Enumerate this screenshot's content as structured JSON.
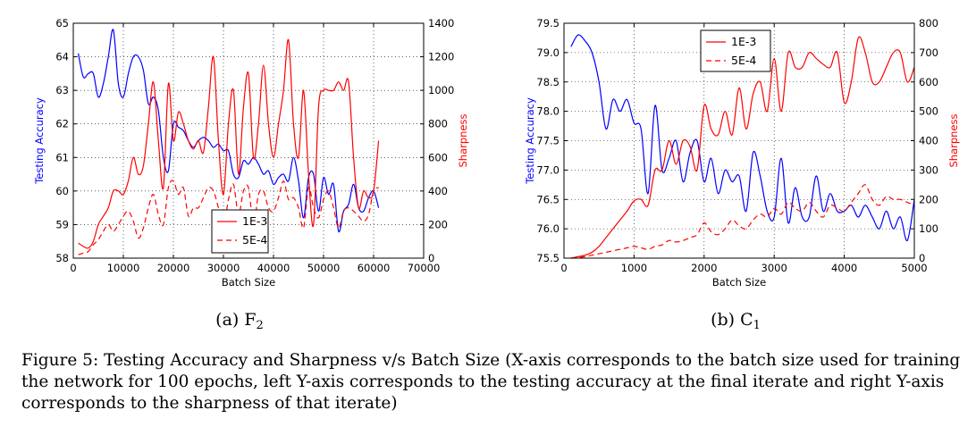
{
  "figure_caption": "Figure 5: Testing Accuracy and Sharpness v/s Batch Size (X-axis corresponds to the batch size used for training the network for 100 epochs, left Y-axis corresponds to the testing accuracy at the final iterate and right Y-axis corresponds to the sharpness of that iterate)",
  "colors": {
    "accuracy": "#0000ff",
    "sharpness": "#ff0000",
    "legend_text": "#000000"
  },
  "chart_data": [
    {
      "type": "line",
      "subcaption": "(a) F",
      "subcaption_sub": "2",
      "xlabel": "Batch Size",
      "ylabel_left": "Testing Accuracy",
      "ylabel_right": "Sharpness",
      "xlim": [
        0,
        70000
      ],
      "ylim_left": [
        58,
        65
      ],
      "ylim_right": [
        0,
        1400
      ],
      "xticks": [
        0,
        10000,
        20000,
        30000,
        40000,
        50000,
        60000,
        70000
      ],
      "yticks_left": [
        "58",
        "59",
        "60",
        "61",
        "62",
        "63",
        "64",
        "65"
      ],
      "yticks_right": [
        "0",
        "200",
        "400",
        "600",
        "800",
        "1000",
        "1200",
        "1400"
      ],
      "grid": true,
      "legend_position": "lower-right",
      "series": [
        {
          "axis": "left",
          "style": "solid",
          "x": [
            1000,
            2000,
            3000,
            4000,
            5000,
            6000,
            7000,
            8000,
            9000,
            10000,
            11000,
            12000,
            13000,
            14000,
            15000,
            16000,
            17000,
            18000,
            19000,
            20000,
            21000,
            22000,
            23000,
            24000,
            25000,
            26000,
            27000,
            28000,
            29000,
            30000,
            31000,
            32000,
            33000,
            34000,
            35000,
            36000,
            37000,
            38000,
            39000,
            40000,
            41000,
            42000,
            43000,
            44000,
            45000,
            46000,
            47000,
            48000,
            49000,
            50000,
            51000,
            52000,
            53000,
            54000,
            55000,
            56000,
            57000,
            58000,
            59000,
            60000,
            61000
          ],
          "y": [
            64.1,
            63.4,
            63.5,
            63.5,
            62.8,
            63.2,
            64.0,
            64.8,
            63.2,
            62.8,
            63.5,
            64.0,
            64.0,
            63.6,
            62.6,
            62.8,
            62.4,
            61.0,
            60.6,
            62.0,
            61.9,
            61.8,
            61.5,
            61.3,
            61.5,
            61.6,
            61.5,
            61.3,
            61.4,
            61.2,
            61.2,
            60.5,
            60.4,
            60.9,
            60.8,
            61.0,
            60.8,
            60.5,
            60.6,
            60.2,
            60.4,
            60.5,
            60.3,
            61.0,
            60.3,
            59.2,
            60.4,
            60.5,
            59.4,
            60.4,
            59.9,
            60.2,
            58.8,
            59.4,
            59.6,
            60.2,
            59.5,
            59.4,
            59.8,
            60.0,
            59.5
          ]
        },
        {
          "name": "1E-3",
          "axis": "right",
          "style": "solid",
          "x": [
            1000,
            2000,
            3000,
            4000,
            5000,
            6000,
            7000,
            8000,
            9000,
            10000,
            11000,
            12000,
            13000,
            14000,
            15000,
            16000,
            17000,
            18000,
            19000,
            20000,
            21000,
            22000,
            23000,
            24000,
            25000,
            26000,
            27000,
            28000,
            29000,
            30000,
            31000,
            32000,
            33000,
            34000,
            35000,
            36000,
            37000,
            38000,
            39000,
            40000,
            41000,
            42000,
            43000,
            44000,
            45000,
            46000,
            47000,
            48000,
            49000,
            50000,
            51000,
            52000,
            53000,
            54000,
            55000,
            56000,
            57000,
            58000,
            59000,
            60000,
            61000
          ],
          "y": [
            90,
            70,
            60,
            100,
            200,
            250,
            300,
            400,
            400,
            380,
            460,
            600,
            500,
            550,
            800,
            1050,
            700,
            420,
            1040,
            700,
            870,
            800,
            700,
            650,
            700,
            630,
            900,
            1200,
            700,
            380,
            800,
            1000,
            500,
            900,
            1100,
            600,
            800,
            1150,
            800,
            600,
            800,
            1000,
            1300,
            800,
            600,
            1000,
            500,
            200,
            900,
            1000,
            1000,
            1000,
            1050,
            1000,
            1050,
            600,
            300,
            400,
            360,
            400,
            700
          ]
        },
        {
          "name": "5E-4",
          "axis": "right",
          "style": "dashed",
          "x": [
            1000,
            2000,
            3000,
            4000,
            5000,
            6000,
            7000,
            8000,
            9000,
            10000,
            11000,
            12000,
            13000,
            14000,
            15000,
            16000,
            17000,
            18000,
            19000,
            20000,
            21000,
            22000,
            23000,
            24000,
            25000,
            26000,
            27000,
            28000,
            29000,
            30000,
            31000,
            32000,
            33000,
            34000,
            35000,
            36000,
            37000,
            38000,
            39000,
            40000,
            41000,
            42000,
            43000,
            44000,
            45000,
            46000,
            47000,
            48000,
            49000,
            50000,
            51000,
            52000,
            53000,
            54000,
            55000,
            56000,
            57000,
            58000,
            59000,
            60000,
            61000
          ],
          "y": [
            20,
            30,
            40,
            80,
            110,
            160,
            200,
            160,
            200,
            250,
            280,
            220,
            120,
            180,
            300,
            380,
            260,
            200,
            420,
            460,
            380,
            420,
            250,
            300,
            300,
            360,
            420,
            400,
            300,
            180,
            350,
            440,
            260,
            400,
            420,
            200,
            380,
            400,
            300,
            280,
            360,
            460,
            350,
            360,
            300,
            180,
            420,
            300,
            240,
            350,
            400,
            300,
            180,
            280,
            300,
            280,
            250,
            220,
            260,
            400,
            420
          ]
        }
      ]
    },
    {
      "type": "line",
      "subcaption": "(b) C",
      "subcaption_sub": "1",
      "xlabel": "Batch Size",
      "ylabel_left": "Testing Accuracy",
      "ylabel_right": "Sharpness",
      "xlim": [
        0,
        5000
      ],
      "ylim_left": [
        75.5,
        79.5
      ],
      "ylim_right": [
        0,
        800
      ],
      "xticks": [
        0,
        1000,
        2000,
        3000,
        4000,
        5000
      ],
      "yticks_left": [
        "75.5",
        "76.0",
        "76.5",
        "77.0",
        "77.5",
        "78.0",
        "78.5",
        "79.0",
        "79.5"
      ],
      "yticks_right": [
        "0",
        "100",
        "200",
        "300",
        "400",
        "500",
        "600",
        "700",
        "800"
      ],
      "grid": true,
      "legend_position": "upper-left",
      "series": [
        {
          "axis": "left",
          "style": "solid",
          "x": [
            100,
            200,
            300,
            400,
            500,
            600,
            700,
            800,
            900,
            1000,
            1100,
            1200,
            1300,
            1400,
            1500,
            1600,
            1700,
            1800,
            1900,
            2000,
            2100,
            2200,
            2300,
            2400,
            2500,
            2600,
            2700,
            2800,
            2900,
            3000,
            3100,
            3200,
            3300,
            3400,
            3500,
            3600,
            3700,
            3800,
            3900,
            4000,
            4100,
            4200,
            4300,
            4400,
            4500,
            4600,
            4700,
            4800,
            4900,
            5000
          ],
          "y": [
            79.1,
            79.3,
            79.2,
            79.0,
            78.5,
            77.7,
            78.2,
            78.0,
            78.2,
            77.8,
            77.7,
            76.6,
            78.1,
            77.0,
            77.2,
            77.5,
            76.8,
            77.3,
            77.5,
            76.8,
            77.2,
            76.6,
            77.0,
            76.8,
            76.9,
            76.3,
            77.3,
            76.9,
            76.3,
            76.2,
            77.2,
            76.1,
            76.7,
            76.2,
            76.2,
            76.9,
            76.3,
            76.6,
            76.3,
            76.3,
            76.4,
            76.2,
            76.4,
            76.2,
            76.0,
            76.3,
            76.0,
            76.2,
            75.8,
            76.5
          ]
        },
        {
          "name": "1E-3",
          "axis": "right",
          "style": "solid",
          "x": [
            100,
            200,
            300,
            400,
            500,
            600,
            700,
            800,
            900,
            1000,
            1100,
            1200,
            1300,
            1400,
            1500,
            1600,
            1700,
            1800,
            1900,
            2000,
            2100,
            2200,
            2300,
            2400,
            2500,
            2600,
            2700,
            2800,
            2900,
            3000,
            3100,
            3200,
            3300,
            3400,
            3500,
            3600,
            3700,
            3800,
            3900,
            4000,
            4100,
            4200,
            4300,
            4400,
            4500,
            4600,
            4700,
            4800,
            4900,
            5000
          ],
          "y": [
            0,
            5,
            10,
            20,
            40,
            70,
            100,
            130,
            160,
            195,
            200,
            180,
            300,
            300,
            400,
            320,
            400,
            380,
            300,
            520,
            440,
            420,
            500,
            420,
            580,
            440,
            560,
            600,
            500,
            680,
            500,
            700,
            650,
            650,
            700,
            680,
            660,
            650,
            700,
            530,
            600,
            750,
            700,
            600,
            600,
            650,
            700,
            700,
            600,
            650
          ]
        },
        {
          "name": "5E-4",
          "axis": "right",
          "style": "dashed",
          "x": [
            100,
            200,
            300,
            400,
            500,
            600,
            700,
            800,
            900,
            1000,
            1100,
            1200,
            1300,
            1400,
            1500,
            1600,
            1700,
            1800,
            1900,
            2000,
            2100,
            2200,
            2300,
            2400,
            2500,
            2600,
            2700,
            2800,
            2900,
            3000,
            3100,
            3200,
            3300,
            3400,
            3500,
            3600,
            3700,
            3800,
            3900,
            4000,
            4100,
            4200,
            4300,
            4400,
            4500,
            4600,
            4700,
            4800,
            4900,
            5000
          ],
          "y": [
            0,
            2,
            5,
            10,
            15,
            20,
            25,
            30,
            35,
            40,
            35,
            30,
            40,
            45,
            60,
            55,
            60,
            70,
            80,
            120,
            90,
            80,
            100,
            130,
            110,
            100,
            130,
            150,
            140,
            170,
            150,
            190,
            170,
            160,
            190,
            160,
            140,
            180,
            170,
            160,
            190,
            220,
            250,
            200,
            180,
            210,
            200,
            200,
            190,
            180
          ]
        }
      ]
    }
  ]
}
